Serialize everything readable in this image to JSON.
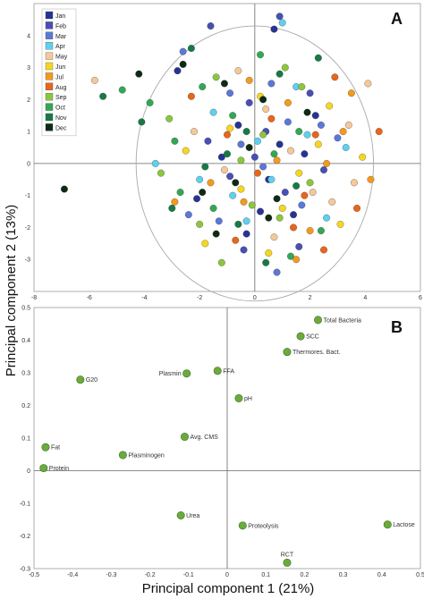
{
  "figure": {
    "ylabel": "Principal component 2 (13%)",
    "xlabel": "Principal component 1 (21%)"
  },
  "chart_data": [
    {
      "panel": "A",
      "type": "scatter",
      "xlim": [
        -8,
        6
      ],
      "ylim": [
        -4,
        5
      ],
      "x_ticks": [
        -8,
        -6,
        -4,
        -2,
        0,
        2,
        4,
        6
      ],
      "y_ticks": [
        -3,
        -2,
        -1,
        0,
        1,
        2,
        3,
        4
      ],
      "legend_position": "top-left",
      "grid": false,
      "reference_circle_radius": 4.3,
      "series": [
        {
          "name": "Jan",
          "color": "#253494",
          "points": [
            [
              -2.8,
              2.9
            ],
            [
              0.7,
              4.2
            ],
            [
              2.2,
              1.5
            ],
            [
              -1.2,
              0.2
            ],
            [
              0.5,
              -0.5
            ],
            [
              1.4,
              -1.6
            ],
            [
              -0.3,
              -2.2
            ],
            [
              0.9,
              0.6
            ],
            [
              -2.1,
              -1.1
            ],
            [
              1.8,
              0.3
            ],
            [
              -0.6,
              1.2
            ],
            [
              0.2,
              -1.5
            ]
          ]
        },
        {
          "name": "Feb",
          "color": "#4a4fb5",
          "points": [
            [
              -1.6,
              4.3
            ],
            [
              0.9,
              4.6
            ],
            [
              -0.2,
              1.9
            ],
            [
              1.1,
              -0.9
            ],
            [
              -0.9,
              -0.4
            ],
            [
              2.5,
              -0.2
            ],
            [
              0.4,
              1.0
            ],
            [
              -1.7,
              0.7
            ],
            [
              1.6,
              -2.6
            ],
            [
              0.0,
              0.2
            ],
            [
              -0.4,
              -2.7
            ],
            [
              2.0,
              2.2
            ]
          ]
        },
        {
          "name": "Mar",
          "color": "#5b78d6",
          "points": [
            [
              -2.6,
              3.5
            ],
            [
              -0.9,
              2.2
            ],
            [
              0.6,
              2.5
            ],
            [
              3.0,
              0.8
            ],
            [
              -1.3,
              -1.8
            ],
            [
              0.3,
              -0.1
            ],
            [
              1.2,
              1.3
            ],
            [
              -0.5,
              0.6
            ],
            [
              1.7,
              -1.3
            ],
            [
              2.4,
              1.2
            ],
            [
              -2.4,
              -1.6
            ],
            [
              0.8,
              -3.4
            ]
          ]
        },
        {
          "name": "Apr",
          "color": "#5fd0ee",
          "points": [
            [
              1.0,
              4.4
            ],
            [
              -3.6,
              0.0
            ],
            [
              1.5,
              2.4
            ],
            [
              -0.8,
              -1.0
            ],
            [
              0.1,
              0.7
            ],
            [
              2.6,
              -1.7
            ],
            [
              -1.5,
              1.6
            ],
            [
              0.6,
              -0.5
            ],
            [
              1.9,
              0.9
            ],
            [
              -0.3,
              -1.8
            ],
            [
              3.3,
              0.5
            ],
            [
              -2.0,
              -0.5
            ]
          ]
        },
        {
          "name": "May",
          "color": "#f5c89a",
          "points": [
            [
              -5.8,
              2.6
            ],
            [
              4.1,
              2.5
            ],
            [
              3.4,
              1.2
            ],
            [
              2.1,
              -0.9
            ],
            [
              -0.6,
              2.9
            ],
            [
              1.3,
              0.4
            ],
            [
              -1.1,
              -0.2
            ],
            [
              0.7,
              -2.3
            ],
            [
              2.8,
              -1.2
            ],
            [
              -2.2,
              1.0
            ],
            [
              3.6,
              -0.6
            ],
            [
              0.4,
              1.7
            ]
          ]
        },
        {
          "name": "Jun",
          "color": "#f7d61e",
          "points": [
            [
              3.9,
              0.2
            ],
            [
              2.7,
              1.8
            ],
            [
              -0.5,
              -0.8
            ],
            [
              1.6,
              -0.3
            ],
            [
              0.2,
              2.1
            ],
            [
              -1.8,
              -2.5
            ],
            [
              3.1,
              -1.9
            ],
            [
              1.0,
              -1.4
            ],
            [
              -0.9,
              1.1
            ],
            [
              2.3,
              0.6
            ],
            [
              0.5,
              -2.8
            ],
            [
              -2.5,
              0.4
            ]
          ]
        },
        {
          "name": "Jul",
          "color": "#f39a1e",
          "points": [
            [
              4.2,
              -0.5
            ],
            [
              3.5,
              2.2
            ],
            [
              2.0,
              -2.1
            ],
            [
              1.2,
              1.9
            ],
            [
              -0.4,
              -1.2
            ],
            [
              0.8,
              0.1
            ],
            [
              2.6,
              0.0
            ],
            [
              -1.6,
              -0.6
            ],
            [
              1.5,
              -3.0
            ],
            [
              3.2,
              1.0
            ],
            [
              -0.2,
              2.6
            ],
            [
              -2.9,
              -1.2
            ]
          ]
        },
        {
          "name": "Aug",
          "color": "#e8651c",
          "points": [
            [
              4.5,
              1.0
            ],
            [
              3.7,
              -1.4
            ],
            [
              2.9,
              2.7
            ],
            [
              1.8,
              -1.0
            ],
            [
              0.1,
              -0.3
            ],
            [
              -1.0,
              0.9
            ],
            [
              2.2,
              0.9
            ],
            [
              0.6,
              1.4
            ],
            [
              -0.7,
              -2.4
            ],
            [
              1.4,
              -2.0
            ],
            [
              2.5,
              -2.7
            ],
            [
              -2.3,
              2.1
            ]
          ]
        },
        {
          "name": "Sep",
          "color": "#8cc63e",
          "points": [
            [
              -1.4,
              2.7
            ],
            [
              -3.1,
              1.4
            ],
            [
              -2.0,
              -1.9
            ],
            [
              -0.5,
              0.1
            ],
            [
              0.9,
              -1.7
            ],
            [
              1.7,
              2.4
            ],
            [
              -1.2,
              -3.1
            ],
            [
              0.3,
              0.9
            ],
            [
              2.0,
              -0.6
            ],
            [
              -3.4,
              -0.3
            ],
            [
              1.1,
              3.0
            ],
            [
              -0.1,
              -1.3
            ]
          ]
        },
        {
          "name": "Oct",
          "color": "#33a853",
          "points": [
            [
              -4.8,
              2.3
            ],
            [
              -3.8,
              1.9
            ],
            [
              -2.7,
              -0.9
            ],
            [
              -1.5,
              -1.4
            ],
            [
              0.2,
              3.4
            ],
            [
              1.3,
              -2.9
            ],
            [
              -0.8,
              1.5
            ],
            [
              2.4,
              -2.1
            ],
            [
              -2.9,
              0.7
            ],
            [
              0.7,
              0.3
            ],
            [
              -1.9,
              2.4
            ],
            [
              1.6,
              1.0
            ]
          ]
        },
        {
          "name": "Nov",
          "color": "#177a45",
          "points": [
            [
              -5.5,
              2.1
            ],
            [
              -4.1,
              1.3
            ],
            [
              -2.3,
              3.6
            ],
            [
              -0.6,
              -1.9
            ],
            [
              0.9,
              2.8
            ],
            [
              -1.8,
              -0.1
            ],
            [
              1.5,
              -0.7
            ],
            [
              -3.0,
              -1.4
            ],
            [
              0.4,
              -3.1
            ],
            [
              -1.0,
              0.3
            ],
            [
              2.3,
              3.3
            ],
            [
              -0.3,
              1.0
            ]
          ]
        },
        {
          "name": "Dec",
          "color": "#0e2a14",
          "points": [
            [
              -6.9,
              -0.8
            ],
            [
              -4.2,
              2.8
            ],
            [
              -2.6,
              3.1
            ],
            [
              -1.1,
              2.5
            ],
            [
              -0.2,
              0.5
            ],
            [
              0.8,
              -1.1
            ],
            [
              -1.9,
              -0.9
            ],
            [
              0.3,
              2.0
            ],
            [
              -1.4,
              -2.2
            ],
            [
              1.9,
              1.6
            ],
            [
              -0.7,
              -0.6
            ],
            [
              0.5,
              -1.7
            ]
          ]
        }
      ]
    },
    {
      "panel": "B",
      "type": "scatter",
      "xlim": [
        -0.5,
        0.5
      ],
      "ylim": [
        -0.3,
        0.5
      ],
      "x_ticks": [
        -0.5,
        -0.4,
        -0.3,
        -0.2,
        -0.1,
        0,
        0.1,
        0.2,
        0.3,
        0.4,
        0.5
      ],
      "y_ticks": [
        -0.3,
        -0.2,
        -0.1,
        0,
        0.1,
        0.2,
        0.3,
        0.4,
        0.5
      ],
      "grid": false,
      "marker_color": "#6bab3e",
      "points": [
        {
          "label": "Total Bacteria",
          "x": 0.235,
          "y": 0.462
        },
        {
          "label": "SCC",
          "x": 0.19,
          "y": 0.412
        },
        {
          "label": "Thermores. Bact.",
          "x": 0.155,
          "y": 0.364
        },
        {
          "label": "Plasmin",
          "x": -0.105,
          "y": 0.298
        },
        {
          "label": "FFA",
          "x": -0.025,
          "y": 0.306
        },
        {
          "label": "G20",
          "x": -0.38,
          "y": 0.279
        },
        {
          "label": "pH",
          "x": 0.03,
          "y": 0.222
        },
        {
          "label": "Avg. CMS",
          "x": -0.11,
          "y": 0.104
        },
        {
          "label": "Fat",
          "x": -0.47,
          "y": 0.072
        },
        {
          "label": "Plasminogen",
          "x": -0.27,
          "y": 0.048
        },
        {
          "label": "Protein",
          "x": -0.475,
          "y": 0.008
        },
        {
          "label": "Urea",
          "x": -0.12,
          "y": -0.137
        },
        {
          "label": "Proteolysis",
          "x": 0.04,
          "y": -0.168
        },
        {
          "label": "Lactose",
          "x": 0.415,
          "y": -0.165
        },
        {
          "label": "RCT",
          "x": 0.155,
          "y": -0.282
        }
      ]
    }
  ]
}
